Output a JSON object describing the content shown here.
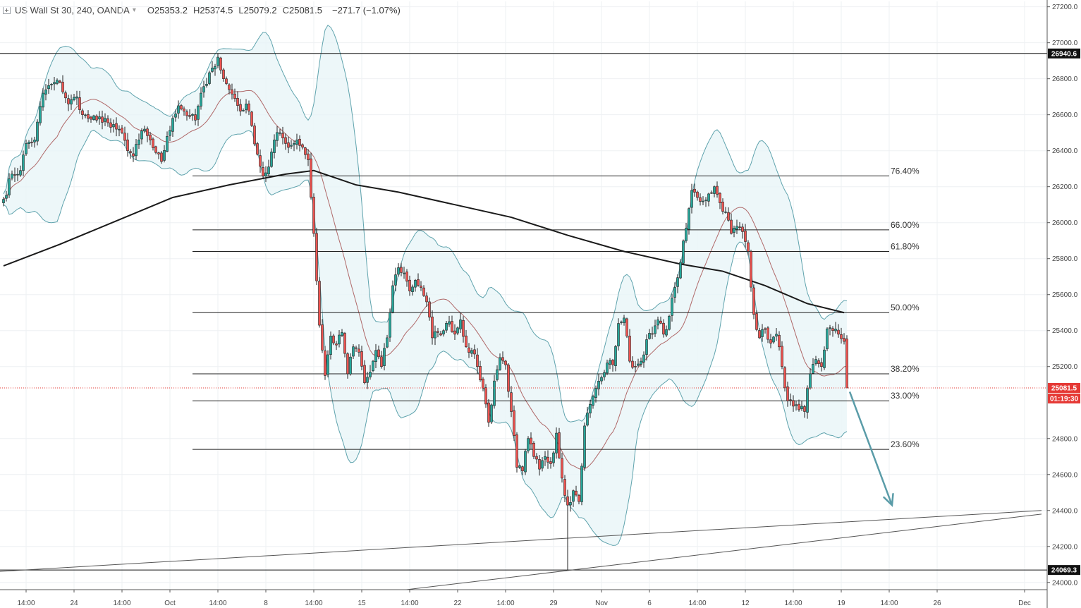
{
  "header": {
    "symbol": "US Wall St 30, 240, OANDA",
    "o_key": "O",
    "o_val": "25353.2",
    "h_key": "H",
    "h_val": "25374.5",
    "l_key": "L",
    "l_val": "25079.2",
    "c_key": "C",
    "c_val": "25081.5",
    "change": "−271.7 (−1.07%)"
  },
  "colors": {
    "up": "#26a69a",
    "down": "#ef5350",
    "candle_border": "#222222",
    "bb_band": "#5fa3ad",
    "bb_fill": "#e8f5f7",
    "bb_mid": "#a04545",
    "ma200": "#1a1a1a",
    "arrow": "#5a9ca8",
    "last_price": "#e53935"
  },
  "price_badges": {
    "last_price": "25081.5",
    "countdown": "01:19:30",
    "resistance": "26940.6",
    "support": "24069.3"
  },
  "chart_data": {
    "type": "candlestick",
    "timeframe": "240",
    "y_axis": {
      "range": [
        23960,
        27230
      ],
      "ticks": [
        27200,
        27000,
        26800,
        26600,
        26400,
        26200,
        26000,
        25800,
        25600,
        25400,
        25200,
        24800,
        24600,
        24400,
        24200,
        24000
      ],
      "tick_labels": [
        "27200.0",
        "27000.0",
        "26800.0",
        "26600.0",
        "26400.0",
        "26200.0",
        "26000.0",
        "25800.0",
        "25600.0",
        "25400.0",
        "25200.0",
        "24800.0",
        "24600.0",
        "24400.0",
        "24200.0",
        "24000.0"
      ]
    },
    "x_axis": {
      "labels": [
        {
          "text": "14:00",
          "bar": 8
        },
        {
          "text": "24",
          "bar": 25
        },
        {
          "text": "14:00",
          "bar": 42
        },
        {
          "text": "Oct",
          "bar": 59
        },
        {
          "text": "14:00",
          "bar": 76
        },
        {
          "text": "8",
          "bar": 93
        },
        {
          "text": "14:00",
          "bar": 110
        },
        {
          "text": "15",
          "bar": 127
        },
        {
          "text": "14:00",
          "bar": 144
        },
        {
          "text": "22",
          "bar": 161
        },
        {
          "text": "14:00",
          "bar": 178
        },
        {
          "text": "29",
          "bar": 195
        },
        {
          "text": "Nov",
          "bar": 212
        },
        {
          "text": "6",
          "bar": 229
        },
        {
          "text": "14:00",
          "bar": 246
        },
        {
          "text": "12",
          "bar": 263
        },
        {
          "text": "14:00",
          "bar": 280
        },
        {
          "text": "19",
          "bar": 297
        },
        {
          "text": "14:00",
          "bar": 314
        },
        {
          "text": "26",
          "bar": 331
        },
        {
          "text": "Dec",
          "bar": 362
        }
      ]
    },
    "horizontal_levels": [
      26940.6,
      24069.3
    ],
    "fibonacci": [
      {
        "label": "76.40%",
        "value": 26260
      },
      {
        "label": "66.00%",
        "value": 25960
      },
      {
        "label": "61.80%",
        "value": 25840
      },
      {
        "label": "50.00%",
        "value": 25500
      },
      {
        "label": "38.20%",
        "value": 25160
      },
      {
        "label": "33.00%",
        "value": 25010
      },
      {
        "label": "23.60%",
        "value": 24740
      }
    ],
    "fib_start_bar": 67,
    "fib_end_bar": 314,
    "last_price": 25081.5,
    "close_points": [
      [
        0,
        26130
      ],
      [
        3,
        26270
      ],
      [
        6,
        26290
      ],
      [
        8,
        26440
      ],
      [
        11,
        26460
      ],
      [
        14,
        26720
      ],
      [
        17,
        26770
      ],
      [
        20,
        26780
      ],
      [
        23,
        26660
      ],
      [
        26,
        26700
      ],
      [
        28,
        26600
      ],
      [
        30,
        26580
      ],
      [
        33,
        26570
      ],
      [
        36,
        26580
      ],
      [
        38,
        26530
      ],
      [
        40,
        26520
      ],
      [
        42,
        26500
      ],
      [
        44,
        26400
      ],
      [
        46,
        26370
      ],
      [
        48,
        26460
      ],
      [
        50,
        26520
      ],
      [
        52,
        26460
      ],
      [
        54,
        26390
      ],
      [
        56,
        26340
      ],
      [
        58,
        26480
      ],
      [
        60,
        26580
      ],
      [
        62,
        26650
      ],
      [
        64,
        26620
      ],
      [
        66,
        26590
      ],
      [
        68,
        26570
      ],
      [
        70,
        26720
      ],
      [
        72,
        26770
      ],
      [
        74,
        26860
      ],
      [
        76,
        26920
      ],
      [
        78,
        26800
      ],
      [
        80,
        26740
      ],
      [
        82,
        26690
      ],
      [
        84,
        26620
      ],
      [
        86,
        26660
      ],
      [
        88,
        26540
      ],
      [
        90,
        26380
      ],
      [
        92,
        26260
      ],
      [
        94,
        26310
      ],
      [
        96,
        26460
      ],
      [
        98,
        26500
      ],
      [
        100,
        26440
      ],
      [
        102,
        26430
      ],
      [
        104,
        26460
      ],
      [
        106,
        26420
      ],
      [
        108,
        26350
      ],
      [
        110,
        25940
      ],
      [
        112,
        25430
      ],
      [
        114,
        25150
      ],
      [
        116,
        25370
      ],
      [
        118,
        25320
      ],
      [
        120,
        25390
      ],
      [
        122,
        25160
      ],
      [
        124,
        25310
      ],
      [
        126,
        25280
      ],
      [
        128,
        25110
      ],
      [
        130,
        25170
      ],
      [
        132,
        25290
      ],
      [
        134,
        25200
      ],
      [
        136,
        25360
      ],
      [
        138,
        25650
      ],
      [
        140,
        25750
      ],
      [
        142,
        25720
      ],
      [
        144,
        25620
      ],
      [
        146,
        25680
      ],
      [
        148,
        25640
      ],
      [
        150,
        25560
      ],
      [
        152,
        25360
      ],
      [
        154,
        25390
      ],
      [
        156,
        25400
      ],
      [
        158,
        25450
      ],
      [
        160,
        25380
      ],
      [
        162,
        25460
      ],
      [
        164,
        25310
      ],
      [
        166,
        25290
      ],
      [
        168,
        25200
      ],
      [
        170,
        25080
      ],
      [
        172,
        24890
      ],
      [
        174,
        25120
      ],
      [
        176,
        25250
      ],
      [
        178,
        25210
      ],
      [
        180,
        24950
      ],
      [
        182,
        24640
      ],
      [
        184,
        24620
      ],
      [
        186,
        24800
      ],
      [
        188,
        24700
      ],
      [
        190,
        24630
      ],
      [
        192,
        24700
      ],
      [
        194,
        24660
      ],
      [
        196,
        24830
      ],
      [
        198,
        24580
      ],
      [
        200,
        24430
      ],
      [
        202,
        24510
      ],
      [
        204,
        24450
      ],
      [
        206,
        24870
      ],
      [
        208,
        24990
      ],
      [
        210,
        25080
      ],
      [
        212,
        25140
      ],
      [
        214,
        25220
      ],
      [
        216,
        25210
      ],
      [
        218,
        25440
      ],
      [
        220,
        25470
      ],
      [
        222,
        25230
      ],
      [
        224,
        25200
      ],
      [
        226,
        25230
      ],
      [
        228,
        25350
      ],
      [
        230,
        25380
      ],
      [
        232,
        25460
      ],
      [
        234,
        25380
      ],
      [
        236,
        25480
      ],
      [
        238,
        25640
      ],
      [
        240,
        25780
      ],
      [
        242,
        25970
      ],
      [
        244,
        26180
      ],
      [
        246,
        26140
      ],
      [
        248,
        26120
      ],
      [
        250,
        26160
      ],
      [
        252,
        26200
      ],
      [
        254,
        26110
      ],
      [
        256,
        26060
      ],
      [
        258,
        25940
      ],
      [
        260,
        25980
      ],
      [
        262,
        25950
      ],
      [
        264,
        25840
      ],
      [
        266,
        25490
      ],
      [
        268,
        25360
      ],
      [
        270,
        25410
      ],
      [
        272,
        25330
      ],
      [
        274,
        25380
      ],
      [
        276,
        25200
      ],
      [
        278,
        25010
      ],
      [
        280,
        24980
      ],
      [
        282,
        24960
      ],
      [
        284,
        24950
      ],
      [
        286,
        25160
      ],
      [
        288,
        25240
      ],
      [
        290,
        25200
      ],
      [
        292,
        25410
      ],
      [
        294,
        25400
      ],
      [
        296,
        25380
      ],
      [
        298,
        25340
      ],
      [
        299,
        25081.5
      ]
    ],
    "ma200_points": [
      [
        0,
        25760
      ],
      [
        20,
        25880
      ],
      [
        40,
        26010
      ],
      [
        60,
        26140
      ],
      [
        80,
        26210
      ],
      [
        100,
        26270
      ],
      [
        110,
        26290
      ],
      [
        125,
        26210
      ],
      [
        140,
        26170
      ],
      [
        160,
        26100
      ],
      [
        180,
        26030
      ],
      [
        200,
        25930
      ],
      [
        220,
        25840
      ],
      [
        240,
        25770
      ],
      [
        255,
        25730
      ],
      [
        270,
        25650
      ],
      [
        285,
        25550
      ],
      [
        298,
        25500
      ]
    ],
    "channel_lines": [
      {
        "from": [
          -3,
          24060
        ],
        "to": [
          368,
          24400
        ]
      },
      {
        "from": [
          100,
          23880
        ],
        "to": [
          368,
          24380
        ]
      }
    ],
    "forecast_arrow": {
      "from": [
        300,
        25060
      ],
      "to": [
        315,
        24430
      ]
    }
  }
}
